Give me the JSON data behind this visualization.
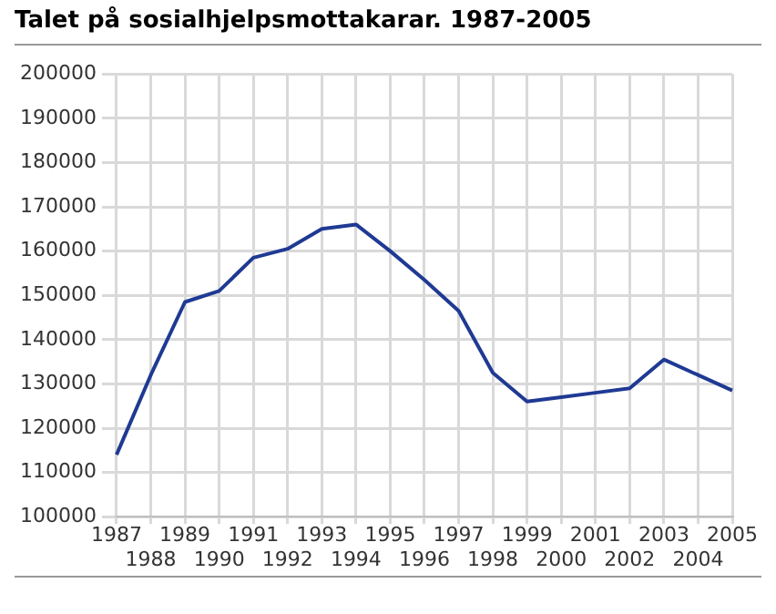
{
  "chart_data": {
    "type": "line",
    "title": "Talet på sosialhjelpsmottakarar. 1987-2005",
    "categories": [
      "1987",
      "1988",
      "1989",
      "1990",
      "1991",
      "1992",
      "1993",
      "1994",
      "1995",
      "1996",
      "1997",
      "1998",
      "1999",
      "2000",
      "2001",
      "2002",
      "2003",
      "2004",
      "2005"
    ],
    "series": [
      {
        "color": "#1f3a93",
        "values": [
          114000,
          132000,
          148500,
          151000,
          158500,
          160500,
          165000,
          166000,
          160000,
          153500,
          146500,
          132500,
          126000,
          127000,
          128000,
          129000,
          135500,
          132000,
          128500
        ]
      }
    ],
    "ylim": [
      100000,
      200000
    ],
    "yticks": [
      100000,
      110000,
      120000,
      130000,
      140000,
      150000,
      160000,
      170000,
      180000,
      190000,
      200000
    ],
    "grid": true,
    "legend": false,
    "marker": "none",
    "line_style": "solid"
  }
}
